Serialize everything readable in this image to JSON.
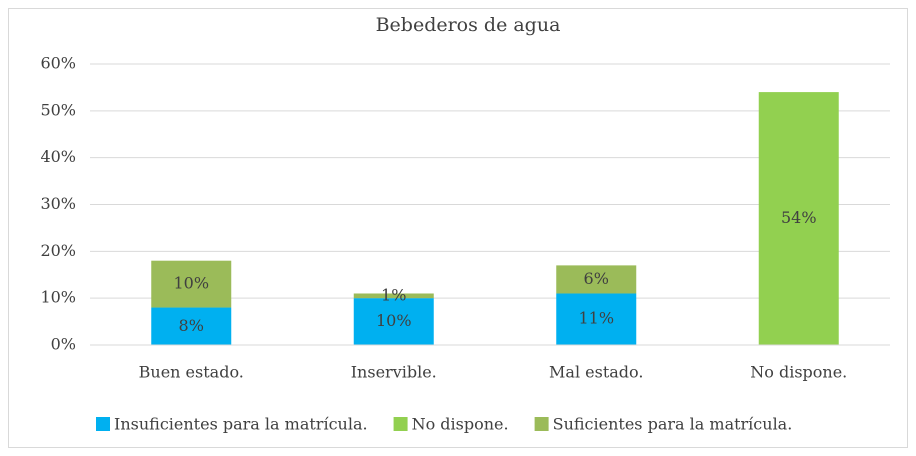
{
  "chart_data": {
    "type": "stacked_bar",
    "title": "Bebederos de agua",
    "categories": [
      "Buen estado.",
      "Inservible.",
      "Mal estado.",
      "No dispone."
    ],
    "series": [
      {
        "name": "Insuficientes para la matrícula.",
        "color": "#00b0f0",
        "values": [
          8,
          10,
          11,
          null
        ],
        "value_labels": [
          "8%",
          "10%",
          "11%",
          null
        ]
      },
      {
        "name": "No dispone.",
        "color": "#92d050",
        "values": [
          null,
          null,
          null,
          54
        ],
        "value_labels": [
          null,
          null,
          null,
          "54%"
        ]
      },
      {
        "name": "Suficientes para la matrícula.",
        "color": "#9bbb59",
        "values": [
          10,
          1,
          6,
          null
        ],
        "value_labels": [
          "10%",
          "1%",
          "6%",
          null
        ]
      }
    ],
    "ylim": [
      0,
      60
    ],
    "yticks": [
      {
        "value": 0,
        "label": "0%"
      },
      {
        "value": 10,
        "label": "10%"
      },
      {
        "value": 20,
        "label": "20%"
      },
      {
        "value": 30,
        "label": "30%"
      },
      {
        "value": 40,
        "label": "40%"
      },
      {
        "value": 50,
        "label": "50%"
      },
      {
        "value": 60,
        "label": "60%"
      }
    ],
    "grid": true,
    "legend": "bottom"
  }
}
